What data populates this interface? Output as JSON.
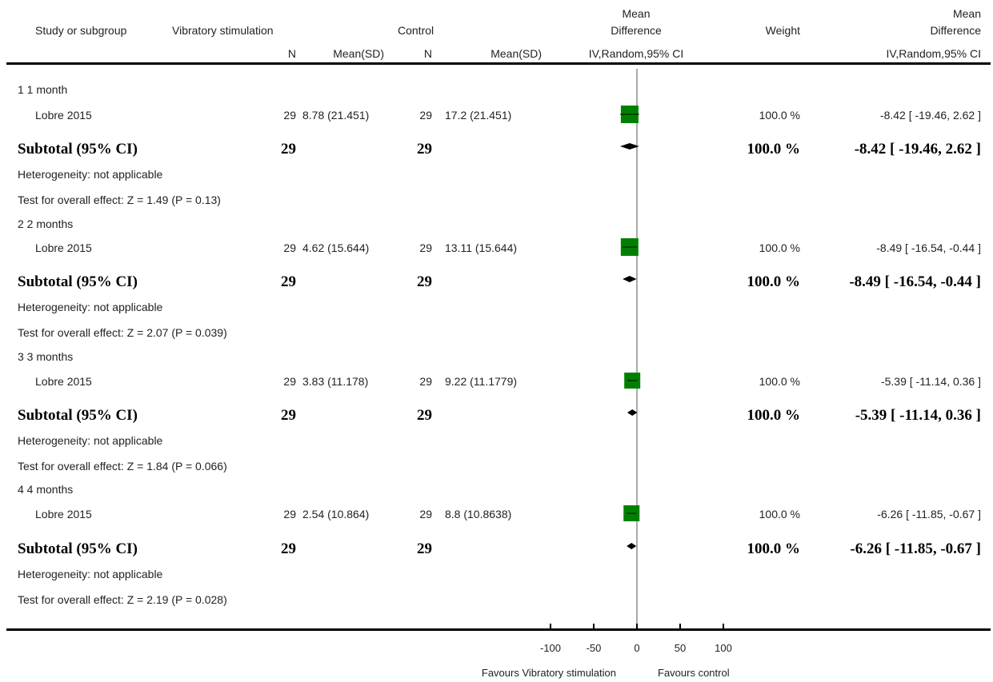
{
  "header": {
    "study": "Study or subgroup",
    "group1": "Vibratory stimulation",
    "group2": "Control",
    "n": "N",
    "mean_sd": "Mean(SD)",
    "md_line1": "Mean",
    "md_line2": "Difference",
    "md_method": "IV,Random,95% CI",
    "weight": "Weight",
    "md2_line1": "Mean",
    "md2_line2": "Difference",
    "md2_method": "IV,Random,95% CI"
  },
  "subgroups": [
    {
      "title": "1 1 month",
      "study": {
        "name": "Lobre 2015",
        "n1": "29",
        "m1": "8.78 (21.451)",
        "n2": "29",
        "m2": "17.2 (21.451)",
        "weight": "100.0 %",
        "ci": "-8.42 [ -19.46, 2.62 ]"
      },
      "subtotal": {
        "label": "Subtotal (95% CI)",
        "n1": "29",
        "n2": "29",
        "weight": "100.0 %",
        "ci": "-8.42 [ -19.46, 2.62 ]"
      },
      "heterogeneity": "Heterogeneity: not applicable",
      "overall": "Test for overall effect: Z = 1.49 (P = 0.13)"
    },
    {
      "title": "2 2 months",
      "study": {
        "name": "Lobre 2015",
        "n1": "29",
        "m1": "4.62 (15.644)",
        "n2": "29",
        "m2": "13.11 (15.644)",
        "weight": "100.0 %",
        "ci": "-8.49 [ -16.54, -0.44 ]"
      },
      "subtotal": {
        "label": "Subtotal (95% CI)",
        "n1": "29",
        "n2": "29",
        "weight": "100.0 %",
        "ci": "-8.49 [ -16.54, -0.44 ]"
      },
      "heterogeneity": "Heterogeneity: not applicable",
      "overall": "Test for overall effect: Z = 2.07 (P = 0.039)"
    },
    {
      "title": "3 3 months",
      "study": {
        "name": "Lobre 2015",
        "n1": "29",
        "m1": "3.83 (11.178)",
        "n2": "29",
        "m2": "9.22 (11.1779)",
        "weight": "100.0 %",
        "ci": "-5.39 [ -11.14, 0.36 ]"
      },
      "subtotal": {
        "label": "Subtotal (95% CI)",
        "n1": "29",
        "n2": "29",
        "weight": "100.0 %",
        "ci": "-5.39 [ -11.14, 0.36 ]"
      },
      "heterogeneity": "Heterogeneity: not applicable",
      "overall": "Test for overall effect: Z = 1.84 (P = 0.066)"
    },
    {
      "title": "4 4 months",
      "study": {
        "name": "Lobre 2015",
        "n1": "29",
        "m1": "2.54 (10.864)",
        "n2": "29",
        "m2": "8.8 (10.8638)",
        "weight": "100.0 %",
        "ci": "-6.26 [ -11.85, -0.67 ]"
      },
      "subtotal": {
        "label": "Subtotal (95% CI)",
        "n1": "29",
        "n2": "29",
        "weight": "100.0 %",
        "ci": "-6.26 [ -11.85, -0.67 ]"
      },
      "heterogeneity": "Heterogeneity: not applicable",
      "overall": "Test for overall effect: Z = 2.19 (P = 0.028)"
    }
  ],
  "axis": {
    "ticks": [
      "-100",
      "-50",
      "0",
      "50",
      "100"
    ],
    "favours_left": "Favours Vibratory stimulation",
    "favours_right": "Favours control"
  },
  "colors": {
    "square": "#008000",
    "diamond": "#000000",
    "line": "#000000"
  },
  "chart_data": {
    "type": "forest",
    "xlim": [
      -100,
      100
    ],
    "ticks": [
      -100,
      -50,
      0,
      50,
      100
    ],
    "studies": [
      {
        "subgroup": "1 1 month",
        "md": -8.42,
        "lo": -19.46,
        "hi": 2.62
      },
      {
        "subgroup": "2 2 months",
        "md": -8.49,
        "lo": -16.54,
        "hi": -0.44
      },
      {
        "subgroup": "3 3 months",
        "md": -5.39,
        "lo": -11.14,
        "hi": 0.36
      },
      {
        "subgroup": "4 4 months",
        "md": -6.26,
        "lo": -11.85,
        "hi": -0.67
      }
    ],
    "subtotals": [
      {
        "subgroup": "1 1 month",
        "md": -8.42,
        "lo": -19.46,
        "hi": 2.62
      },
      {
        "subgroup": "2 2 months",
        "md": -8.49,
        "lo": -16.54,
        "hi": -0.44
      },
      {
        "subgroup": "3 3 months",
        "md": -5.39,
        "lo": -11.14,
        "hi": 0.36
      },
      {
        "subgroup": "4 4 months",
        "md": -6.26,
        "lo": -11.85,
        "hi": -0.67
      }
    ]
  }
}
